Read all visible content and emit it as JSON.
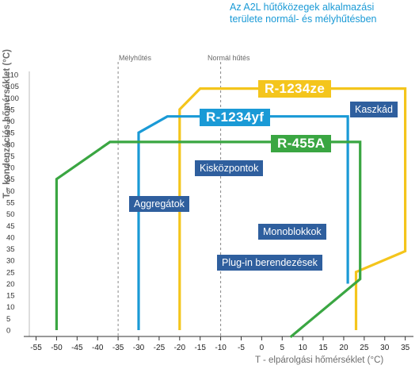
{
  "title_lines": [
    "Az A2L hűtőközegek alkalmazási",
    "területe normál- és mélyhűtésben"
  ],
  "ylabel": "T - kondenzációs hőmérséklet (°C)",
  "xlabel": "T - elpárolgási hőmérséklet (°C)",
  "zones": {
    "deep": "Mélyhűtés",
    "normal": "Normál hűtés"
  },
  "boxes": {
    "kaszkad": "Kaszkád",
    "kiskozpontok": "Kisközpontok",
    "aggregatok": "Aggregátok",
    "monoblokkok": "Monoblokkok",
    "plugin": "Plug-in berendezések"
  },
  "colors": {
    "r1234ze": "#f4c51c",
    "r1234yf": "#1a9ad6",
    "r455a": "#3aa642",
    "box": "#2f5f9e"
  },
  "chart_data": {
    "type": "line",
    "xlim": [
      -58,
      37
    ],
    "ylim": [
      0,
      110
    ],
    "xticks": [
      -55,
      -50,
      -45,
      -40,
      -35,
      -30,
      -25,
      -20,
      -15,
      -10,
      -5,
      0,
      5,
      10,
      15,
      20,
      25,
      30,
      35
    ],
    "yticks": [
      0,
      5,
      10,
      15,
      20,
      25,
      30,
      35,
      40,
      45,
      50,
      55,
      60,
      65,
      70,
      75,
      80,
      85,
      90,
      95,
      100,
      105,
      110
    ],
    "zone_lines_x": [
      -35,
      -10
    ],
    "series": [
      {
        "name": "R-1234ze",
        "key": "r1234ze",
        "points": [
          [
            -20,
            0
          ],
          [
            -20,
            95
          ],
          [
            -15,
            104
          ],
          [
            35,
            104
          ],
          [
            35,
            34
          ],
          [
            23,
            25
          ],
          [
            23,
            0
          ]
        ]
      },
      {
        "name": "R-1234yf",
        "key": "r1234yf",
        "points": [
          [
            -30,
            0
          ],
          [
            -30,
            85
          ],
          [
            -23,
            92
          ],
          [
            21,
            92
          ],
          [
            21,
            20
          ]
        ]
      },
      {
        "name": "R-455A",
        "key": "r455a",
        "points": [
          [
            -50,
            0
          ],
          [
            -50,
            65
          ],
          [
            -37,
            81
          ],
          [
            24,
            81
          ],
          [
            24,
            22
          ],
          [
            7,
            -3
          ]
        ]
      }
    ]
  }
}
